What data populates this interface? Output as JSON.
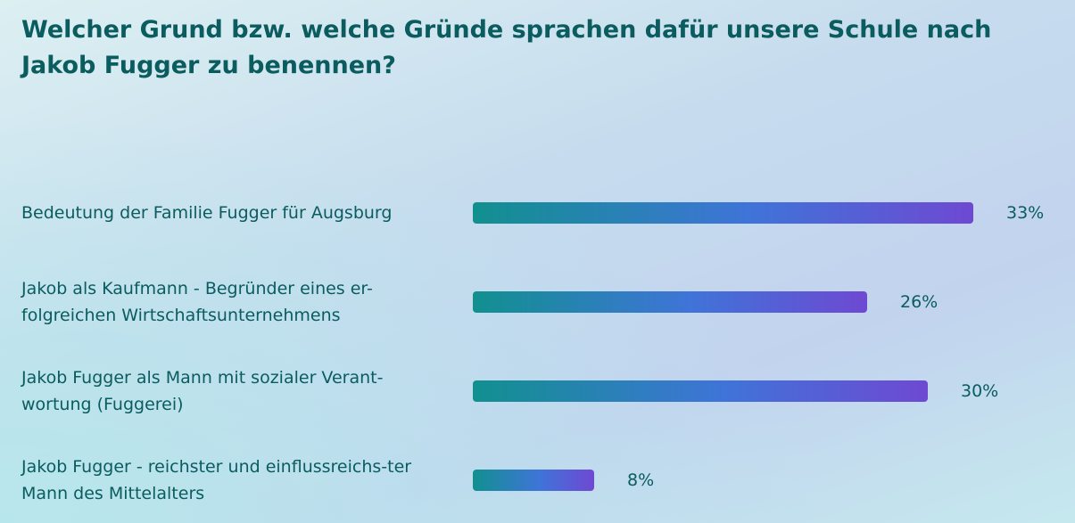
{
  "title": "Welcher Grund bzw. welche Gründe sprachen dafür unsere Schule nach Jakob Fugger zu benennen?",
  "colors": {
    "text": "#0a5c5f",
    "bar_start": "#11908f",
    "bar_mid": "#3f74d8",
    "bar_end": "#6e49d2"
  },
  "chart_data": {
    "type": "bar",
    "orientation": "horizontal",
    "title": "Welcher Grund bzw. welche Gründe sprachen dafür unsere Schule nach Jakob Fugger zu benennen?",
    "categories": [
      "Bedeutung der Familie Fugger für Augsburg",
      "Jakob als Kaufmann - Begründer eines er-folgreichen Wirtschaftsunternehmens",
      "Jakob Fugger als Mann mit sozialer Verant-wortung (Fuggerei)",
      "Jakob Fugger - reichster und einflussreichs-ter Mann des Mittelalters"
    ],
    "values": [
      33,
      26,
      30,
      8
    ],
    "value_labels": [
      "33%",
      "26%",
      "30%",
      "8%"
    ],
    "unit": "%",
    "grid": false
  }
}
